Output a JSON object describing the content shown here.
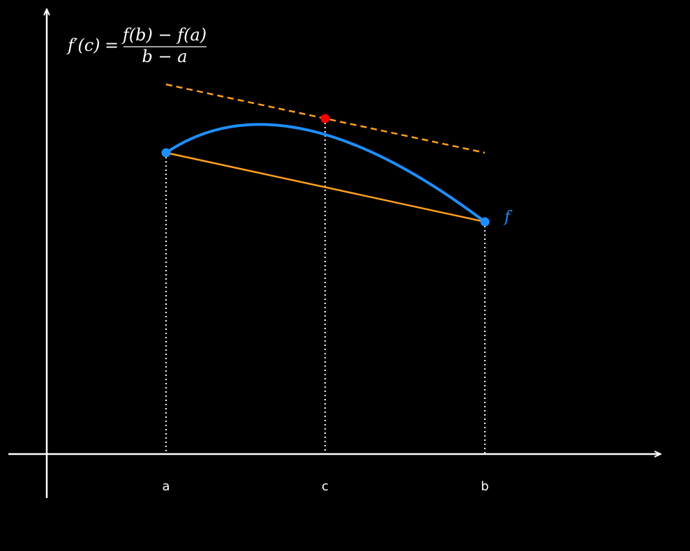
{
  "formula": {
    "lhs": "f′(c)",
    "equals": "=",
    "numerator": "f(b) − f(a)",
    "denominator": "b − a"
  },
  "ticks": {
    "a": "a",
    "c": "c",
    "b": "b"
  },
  "function_label": "f",
  "colors": {
    "background": "#000000",
    "axes": "#ffffff",
    "curve": "#1e8fff",
    "secant": "#ffa01e",
    "tangent": "#ffa01e",
    "point_c": "#ff0000",
    "endpoints": "#1e8fff",
    "guides": "#ffffff"
  }
}
